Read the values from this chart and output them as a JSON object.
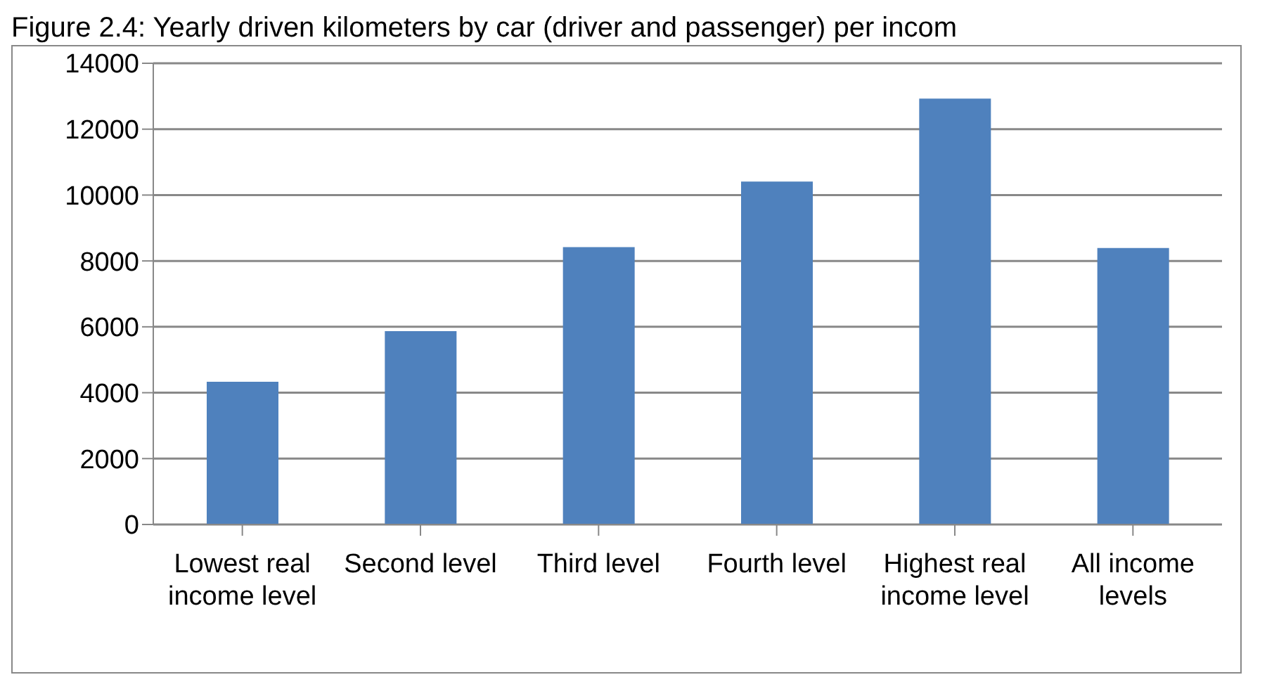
{
  "chart_data": {
    "type": "bar",
    "title": "Figure 2.4: Yearly driven kilometers by car (driver and passenger) per incom",
    "categories": [
      "Lowest real income level",
      "Second level",
      "Third level",
      "Fourth level",
      "Highest real income level",
      "All income levels"
    ],
    "values": [
      4330,
      5870,
      8420,
      10410,
      12930,
      8390
    ],
    "color": "#4f81bd",
    "ylim": [
      0,
      14000
    ],
    "yticks": [
      0,
      2000,
      4000,
      6000,
      8000,
      10000,
      12000,
      14000
    ],
    "grid": "y"
  }
}
